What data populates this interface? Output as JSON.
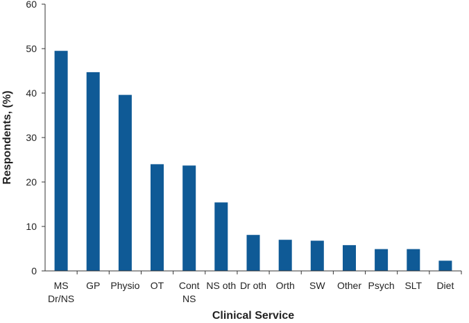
{
  "chart_data": {
    "type": "bar",
    "title": "",
    "xlabel": "Clinical Service",
    "ylabel": "Respondents, (%)",
    "ylim": [
      0,
      60
    ],
    "yticks": [
      0,
      10,
      20,
      30,
      40,
      50,
      60
    ],
    "grid": false,
    "legend": "none",
    "bar_color": "#0f5a96",
    "categories": [
      [
        "MS",
        "Dr/NS"
      ],
      [
        "GP"
      ],
      [
        "Physio"
      ],
      [
        "OT"
      ],
      [
        "Cont",
        "NS"
      ],
      [
        "NS oth"
      ],
      [
        "Dr oth"
      ],
      [
        "Orth"
      ],
      [
        "SW"
      ],
      [
        "Other"
      ],
      [
        "Psych"
      ],
      [
        "SLT"
      ],
      [
        "Diet"
      ]
    ],
    "values": [
      49.5,
      44.7,
      39.6,
      24.0,
      23.7,
      15.4,
      8.1,
      7.0,
      6.8,
      5.8,
      4.9,
      4.9,
      2.3
    ]
  }
}
